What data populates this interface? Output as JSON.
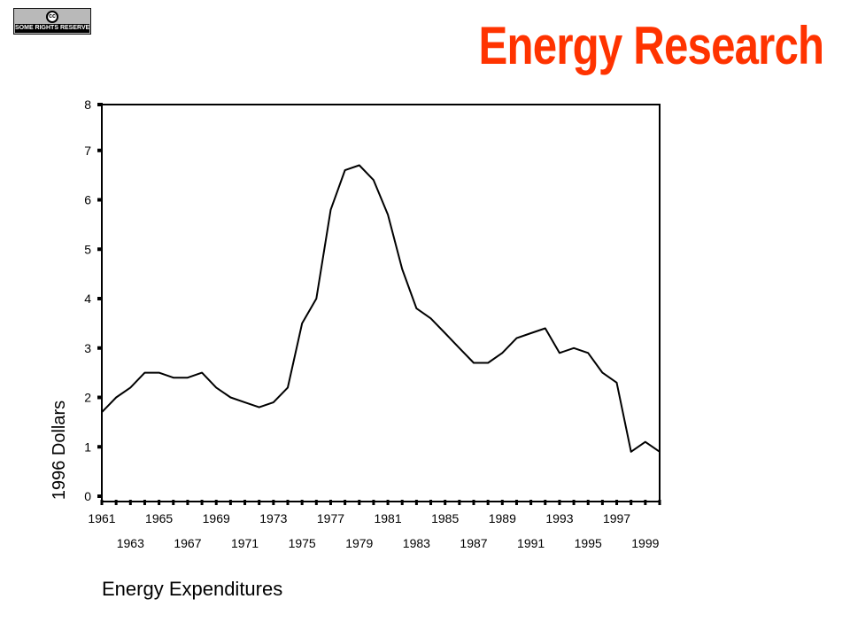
{
  "badge": {
    "label": "SOME RIGHTS RESERVED",
    "symbol": "cc"
  },
  "title": "Energy Research",
  "chart_data": {
    "type": "line",
    "title": "Energy Expenditures",
    "xlabel": "",
    "ylabel": "1996 Dollars",
    "ylim": [
      0,
      8
    ],
    "yticks": [
      0,
      1,
      2,
      3,
      4,
      5,
      6,
      7,
      8
    ],
    "xlim": [
      1961,
      2000
    ],
    "xticks_row1": [
      "1961",
      "1965",
      "1969",
      "1973",
      "1977",
      "1981",
      "1985",
      "1989",
      "1993",
      "1997"
    ],
    "xticks_row2": [
      "1963",
      "1967",
      "1971",
      "1975",
      "1979",
      "1983",
      "1987",
      "1991",
      "1995",
      "1999"
    ],
    "x": [
      1961,
      1962,
      1963,
      1964,
      1965,
      1966,
      1967,
      1968,
      1969,
      1970,
      1971,
      1972,
      1973,
      1974,
      1975,
      1976,
      1977,
      1978,
      1979,
      1980,
      1981,
      1982,
      1983,
      1984,
      1985,
      1986,
      1987,
      1988,
      1989,
      1990,
      1991,
      1992,
      1993,
      1994,
      1995,
      1996,
      1997,
      1998,
      1999,
      2000
    ],
    "series": [
      {
        "values": [
          1.7,
          2.0,
          2.2,
          2.5,
          2.5,
          2.4,
          2.4,
          2.5,
          2.2,
          2.0,
          1.9,
          1.8,
          1.9,
          2.2,
          3.5,
          4.0,
          5.8,
          6.6,
          6.7,
          6.4,
          5.7,
          4.6,
          3.8,
          3.6,
          3.3,
          3.0,
          2.7,
          2.7,
          2.9,
          3.2,
          3.3,
          3.4,
          2.9,
          3.0,
          2.9,
          2.5,
          2.3,
          0.9,
          1.1,
          0.9
        ]
      }
    ],
    "grid": false,
    "line_color": "#000000"
  }
}
